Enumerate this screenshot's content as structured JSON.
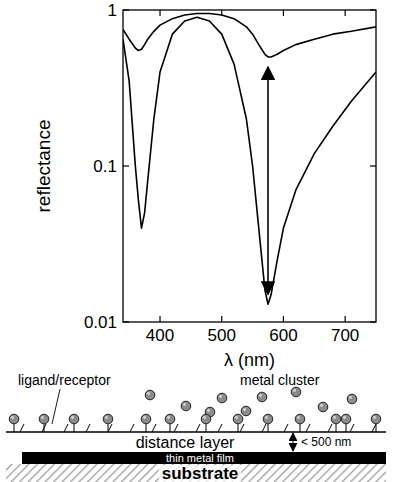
{
  "chart_data": {
    "type": "line",
    "x_label": "λ (nm)",
    "y_label": "reflectance",
    "x": [
      340,
      350,
      360,
      365,
      370,
      375,
      380,
      390,
      400,
      420,
      440,
      460,
      480,
      500,
      520,
      540,
      550,
      560,
      570,
      575,
      580,
      590,
      600,
      620,
      650,
      680,
      710,
      750
    ],
    "series": [
      {
        "color": "#000000",
        "values": [
          0.75,
          0.65,
          0.57,
          0.55,
          0.56,
          0.6,
          0.65,
          0.73,
          0.8,
          0.88,
          0.93,
          0.95,
          0.95,
          0.93,
          0.88,
          0.78,
          0.7,
          0.6,
          0.52,
          0.5,
          0.5,
          0.52,
          0.55,
          0.6,
          0.65,
          0.7,
          0.73,
          0.78
        ]
      },
      {
        "color": "#000000",
        "values": [
          0.65,
          0.35,
          0.1,
          0.06,
          0.04,
          0.05,
          0.08,
          0.2,
          0.4,
          0.7,
          0.85,
          0.9,
          0.85,
          0.7,
          0.45,
          0.2,
          0.1,
          0.04,
          0.016,
          0.013,
          0.015,
          0.025,
          0.04,
          0.07,
          0.12,
          0.18,
          0.26,
          0.4
        ]
      }
    ],
    "xlim": [
      340,
      750
    ],
    "xticks": [
      400,
      500,
      600,
      700
    ],
    "ylim": [
      0.01,
      1
    ],
    "yticks": [
      0.01,
      0.1,
      1
    ],
    "log": "y",
    "grid": false
  },
  "diagram": {
    "labels": {
      "ligand": "ligand/receptor",
      "cluster": "metal cluster",
      "distance": "distance layer",
      "thickness": "< 500 nm",
      "film": "thin metal film",
      "substrate": "substrate"
    }
  }
}
